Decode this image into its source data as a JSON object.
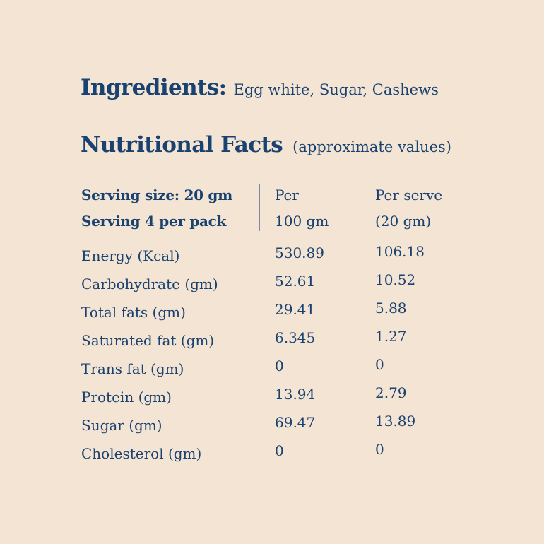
{
  "ingredients": {
    "label": "Ingredients:",
    "value": "Egg white, Sugar, Cashews"
  },
  "nutrition": {
    "title": "Nutritional Facts",
    "note": "(approximate values)",
    "serving_size": "Serving size: 20 gm",
    "serving_count": "Serving 4 per pack",
    "col_per_100_line1": "Per",
    "col_per_100_line2": "100 gm",
    "col_per_serve_line1": "Per serve",
    "col_per_serve_line2": "(20 gm)",
    "rows": [
      {
        "name": "Energy (Kcal)",
        "per100": "530.89",
        "perServe": "106.18"
      },
      {
        "name": "Carbohydrate (gm)",
        "per100": "52.61",
        "perServe": "10.52"
      },
      {
        "name": "Total fats (gm)",
        "per100": "29.41",
        "perServe": "5.88"
      },
      {
        "name": "Saturated fat (gm)",
        "per100": "6.345",
        "perServe": "1.27"
      },
      {
        "name": "Trans fat (gm)",
        "per100": "0",
        "perServe": "0"
      },
      {
        "name": "Protein (gm)",
        "per100": "13.94",
        "perServe": "2.79"
      },
      {
        "name": "Sugar (gm)",
        "per100": "69.47",
        "perServe": "13.89"
      },
      {
        "name": "Cholesterol (gm)",
        "per100": "0",
        "perServe": "0"
      }
    ]
  },
  "colors": {
    "background": "#f4e4d4",
    "text": "#1a4270"
  }
}
